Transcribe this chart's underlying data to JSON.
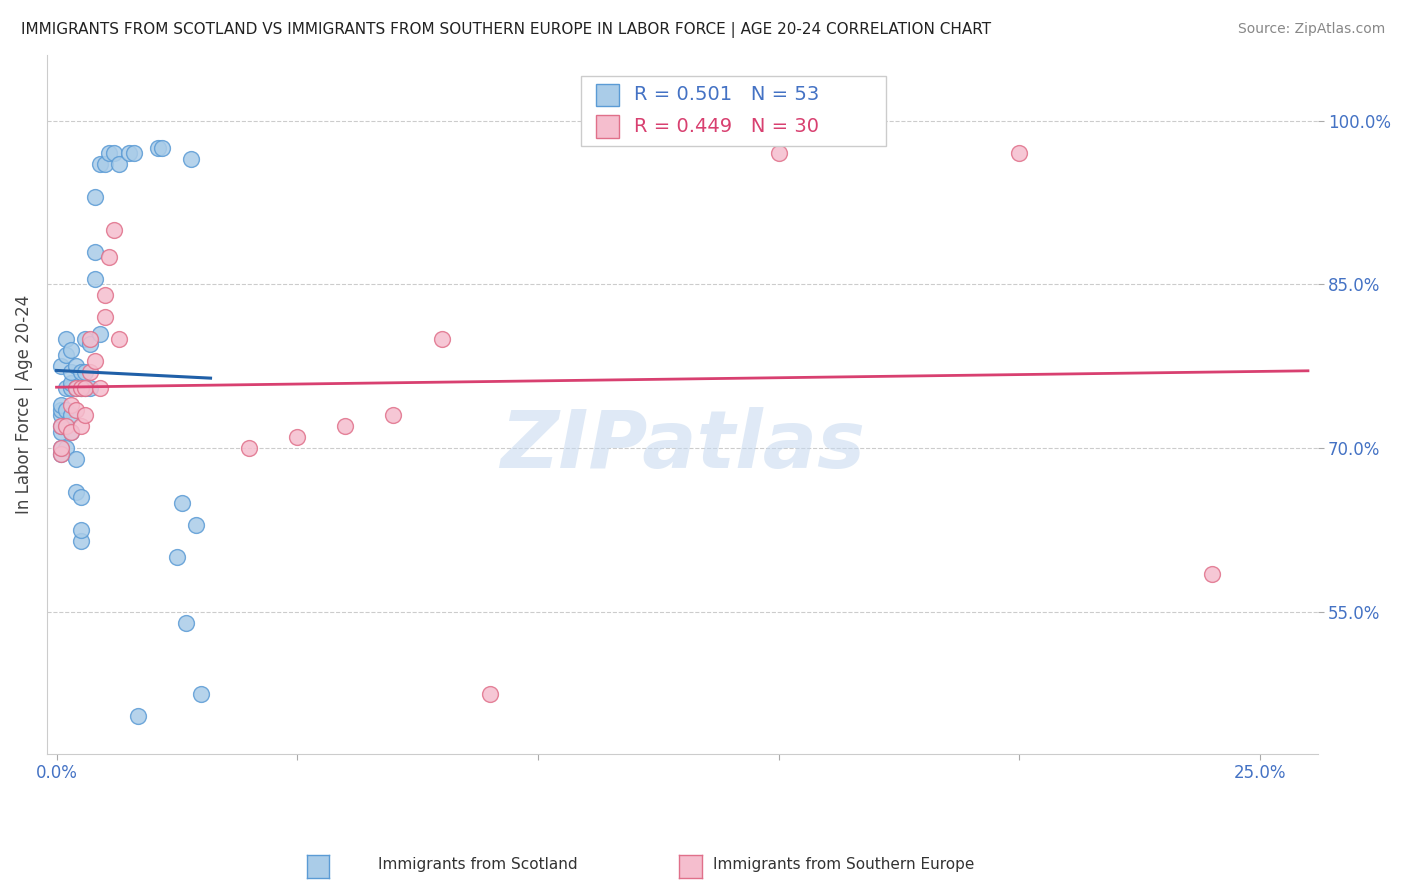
{
  "title": "IMMIGRANTS FROM SCOTLAND VS IMMIGRANTS FROM SOUTHERN EUROPE IN LABOR FORCE | AGE 20-24 CORRELATION CHART",
  "source": "Source: ZipAtlas.com",
  "ylabel": "In Labor Force | Age 20-24",
  "xlim": [
    -0.002,
    0.262
  ],
  "ylim": [
    0.42,
    1.06
  ],
  "y_ticks": [
    0.55,
    0.7,
    0.85,
    1.0
  ],
  "y_tick_labels": [
    "55.0%",
    "70.0%",
    "85.0%",
    "100.0%"
  ],
  "x_ticks": [
    0.0,
    0.05,
    0.1,
    0.15,
    0.2,
    0.25
  ],
  "x_tick_labels": [
    "0.0%",
    "",
    "",
    "",
    "",
    "25.0%"
  ],
  "legend_r1": "R = 0.501",
  "legend_n1": "N = 53",
  "legend_r2": "R = 0.449",
  "legend_n2": "N = 30",
  "scotland_color": "#aacce8",
  "scotland_edge": "#5b9bd5",
  "southern_color": "#f5bece",
  "southern_edge": "#e0708a",
  "line_scotland_color": "#2060a8",
  "line_southern_color": "#d84070",
  "scotland_x": [
    0.001,
    0.001,
    0.001,
    0.001,
    0.001,
    0.001,
    0.001,
    0.001,
    0.002,
    0.002,
    0.002,
    0.002,
    0.002,
    0.003,
    0.003,
    0.003,
    0.003,
    0.003,
    0.003,
    0.004,
    0.004,
    0.004,
    0.004,
    0.005,
    0.005,
    0.005,
    0.005,
    0.005,
    0.006,
    0.006,
    0.006,
    0.007,
    0.007,
    0.008,
    0.008,
    0.008,
    0.009,
    0.009,
    0.01,
    0.011,
    0.012,
    0.013,
    0.015,
    0.016,
    0.017,
    0.021,
    0.022,
    0.025,
    0.026,
    0.027,
    0.028,
    0.029,
    0.03
  ],
  "scotland_y": [
    0.695,
    0.7,
    0.715,
    0.72,
    0.73,
    0.735,
    0.74,
    0.775,
    0.7,
    0.735,
    0.755,
    0.785,
    0.8,
    0.715,
    0.73,
    0.755,
    0.76,
    0.77,
    0.79,
    0.66,
    0.69,
    0.755,
    0.775,
    0.615,
    0.625,
    0.655,
    0.755,
    0.77,
    0.755,
    0.77,
    0.8,
    0.755,
    0.795,
    0.855,
    0.88,
    0.93,
    0.805,
    0.96,
    0.96,
    0.97,
    0.97,
    0.96,
    0.97,
    0.97,
    0.455,
    0.975,
    0.975,
    0.6,
    0.65,
    0.54,
    0.965,
    0.63,
    0.475
  ],
  "southern_x": [
    0.001,
    0.001,
    0.001,
    0.002,
    0.003,
    0.003,
    0.004,
    0.004,
    0.005,
    0.005,
    0.006,
    0.006,
    0.007,
    0.007,
    0.008,
    0.009,
    0.01,
    0.01,
    0.011,
    0.012,
    0.013,
    0.04,
    0.05,
    0.06,
    0.07,
    0.08,
    0.09,
    0.15,
    0.2,
    0.24
  ],
  "southern_y": [
    0.695,
    0.7,
    0.72,
    0.72,
    0.715,
    0.74,
    0.735,
    0.755,
    0.72,
    0.755,
    0.73,
    0.755,
    0.77,
    0.8,
    0.78,
    0.755,
    0.82,
    0.84,
    0.875,
    0.9,
    0.8,
    0.7,
    0.71,
    0.72,
    0.73,
    0.8,
    0.475,
    0.97,
    0.97,
    0.585
  ],
  "watermark_text": "ZIPatlas",
  "background_color": "#ffffff",
  "grid_color": "#cccccc",
  "tick_color": "#4472c4",
  "legend_blue": "#4472c4",
  "legend_pink": "#d84070"
}
